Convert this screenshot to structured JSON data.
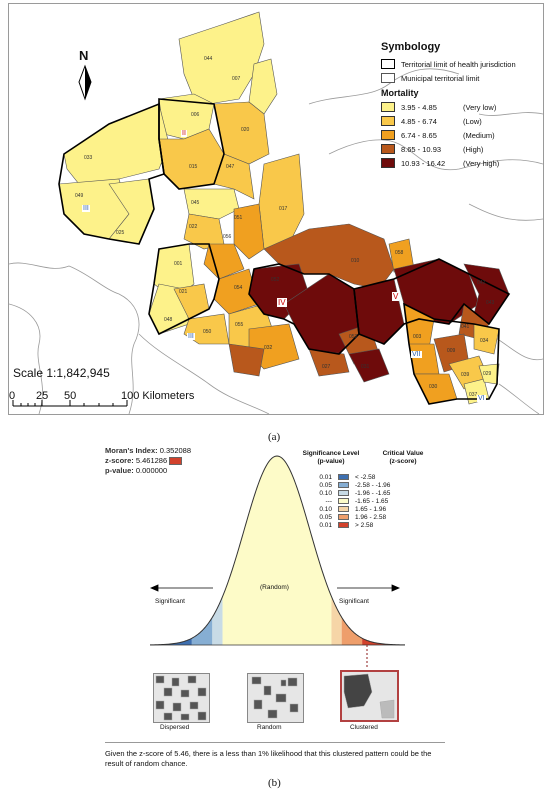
{
  "panel_a": {
    "legend": {
      "title": "Symbology",
      "boundaries": [
        {
          "label": "Territorial limit of health jurisdiction"
        },
        {
          "label": "Municipal territorial limit"
        }
      ],
      "mortality_title": "Mortality",
      "classes": [
        {
          "range": "3.95 - 4.85",
          "note": "(Very low)",
          "color": "#fdf28a"
        },
        {
          "range": "4.85 - 6.74",
          "note": "(Low)",
          "color": "#f9c84a"
        },
        {
          "range": "6.74 - 8.65",
          "note": "(Medium)",
          "color": "#f0a020"
        },
        {
          "range": "8.65 - 10.93",
          "note": "(High)",
          "color": "#b8581c"
        },
        {
          "range": "10.93 - 16.42",
          "note": "(Very high)",
          "color": "#6e0b0b"
        }
      ]
    },
    "north_label": "N",
    "scale_text": "Scale  1:1,842,945",
    "scale_ticks": [
      "0",
      "25",
      "50",
      "100 Kilometers"
    ],
    "jurisdiction_labels": [
      "II",
      "III",
      "IV",
      "V",
      "VI",
      "VII",
      "III"
    ],
    "municipality_codes": [
      "044",
      "007",
      "006",
      "020",
      "033",
      "015",
      "047",
      "049",
      "045",
      "022",
      "025",
      "017",
      "051",
      "056",
      "010",
      "058",
      "001",
      "021",
      "054",
      "052",
      "043",
      "048",
      "050",
      "055",
      "032",
      "053",
      "041",
      "034",
      "027",
      "031",
      "009",
      "039",
      "029",
      "037",
      "042",
      "030",
      "003"
    ],
    "caption": "(a)"
  },
  "panel_b": {
    "moran_index_label": "Moran's Index:",
    "moran_index_value": "0.352088",
    "z_score_label": "z-score:",
    "z_score_value": "5.461286",
    "p_value_label": "p-value:",
    "p_value_value": "0.000000",
    "sig_header_1": "Significance Level",
    "sig_header_2": "(p-value)",
    "crit_header_1": "Critical Value",
    "crit_header_2": "(z-score)",
    "sig_table": [
      {
        "p": "0.01",
        "z": "< -2.58",
        "color": "#3d6fb0"
      },
      {
        "p": "0.05",
        "z": "-2.58 - -1.96",
        "color": "#86aed3"
      },
      {
        "p": "0.10",
        "z": "-1.96 - -1.65",
        "color": "#c8dbe6"
      },
      {
        "p": "---",
        "z": "-1.65 - 1.65",
        "color": "#fdfbc8"
      },
      {
        "p": "0.10",
        "z": "1.65 - 1.96",
        "color": "#f6d5a7"
      },
      {
        "p": "0.05",
        "z": "1.96 - 2.58",
        "color": "#ee9e6b"
      },
      {
        "p": "0.01",
        "z": "> 2.58",
        "color": "#d2422c"
      }
    ],
    "significant_left": "Significant",
    "significant_right": "Significant",
    "random_label": "(Random)",
    "patterns": [
      "Dispersed",
      "Random",
      "Clustered"
    ],
    "conclusion": "Given the z-score of 5.46, there is a less than 1% likelihood that this clustered pattern could be the result of random chance.",
    "caption": "(b)"
  }
}
